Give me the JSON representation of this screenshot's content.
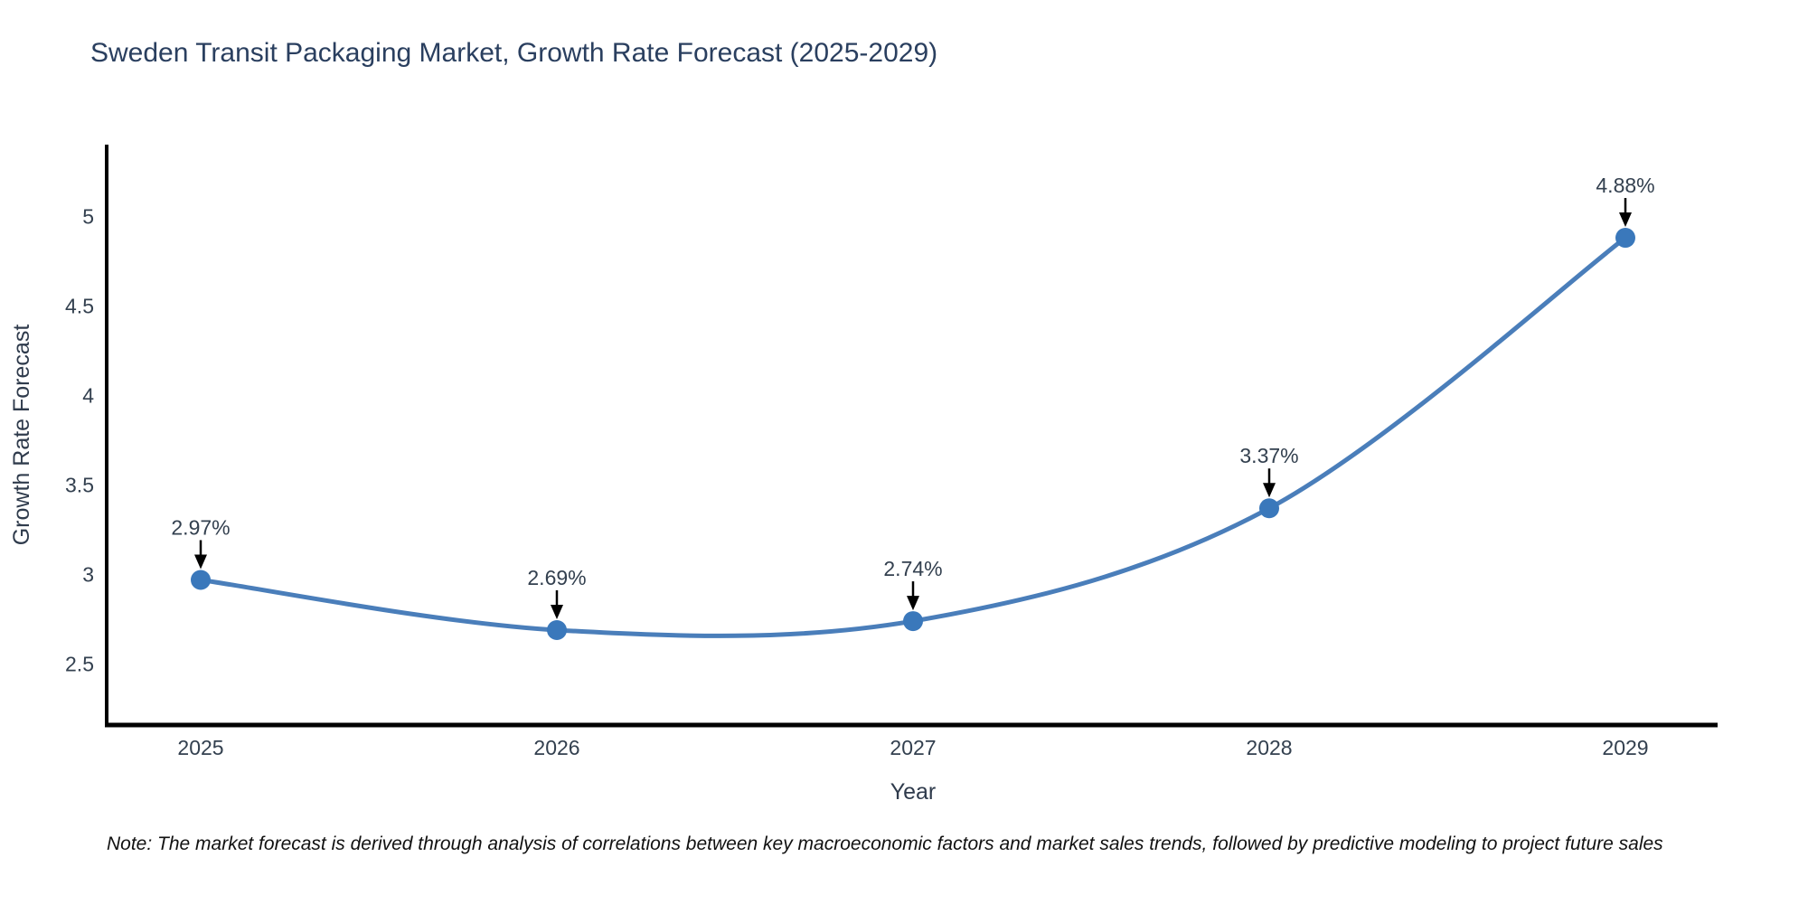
{
  "chart_data": {
    "type": "line",
    "title": "Sweden Transit Packaging Market, Growth Rate Forecast (2025-2029)",
    "xlabel": "Year",
    "ylabel": "Growth Rate Forecast",
    "categories": [
      "2025",
      "2026",
      "2027",
      "2028",
      "2029"
    ],
    "series": [
      {
        "name": "Growth Rate Forecast",
        "values": [
          2.97,
          2.69,
          2.74,
          3.37,
          4.88
        ],
        "point_labels": [
          "2.97%",
          "2.69%",
          "2.74%",
          "3.37%",
          "4.88%"
        ]
      }
    ],
    "yticks": [
      2.5,
      3,
      3.5,
      4,
      4.5,
      5
    ],
    "ylim": [
      2.16,
      5.4
    ],
    "grid": false,
    "legend_position": "none",
    "line_shape": "spline",
    "colors": {
      "line": "#4a7eba",
      "marker": "#3a78bb",
      "axis": "#000000",
      "arrow": "#000000",
      "title_text": "#2a3f5f",
      "tick_text": "#33404f",
      "annotation_text": "#2a3f5f",
      "note_text": "#111111",
      "background": "#ffffff"
    }
  },
  "note": "Note: The market forecast is derived through analysis of correlations between key macroeconomic factors and market sales trends, followed by predictive modeling to project future sales"
}
